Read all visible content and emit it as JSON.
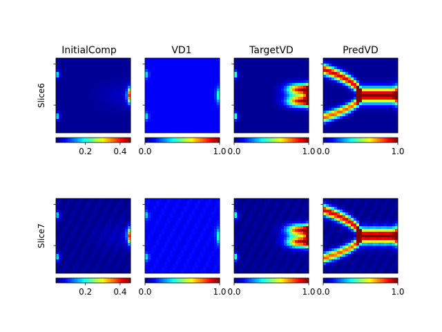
{
  "chart_data": {
    "type": "heatmap",
    "colormap": "jet",
    "columns": [
      "InitialComp",
      "VD1",
      "TargetVD",
      "PredVD"
    ],
    "rows": [
      "Slice6",
      "Slice7"
    ],
    "colorbars": [
      {
        "panel": "InitialComp",
        "range": [
          0.03,
          0.46
        ],
        "ticks": [
          0.2,
          0.4
        ],
        "tick_labels": [
          "0.2",
          "0.4"
        ]
      },
      {
        "panel": "VD1",
        "range": [
          0.0,
          1.0
        ],
        "ticks": [
          0.0,
          1.0
        ],
        "tick_labels": [
          "0.0",
          "1.0"
        ]
      },
      {
        "panel": "TargetVD",
        "range": [
          0.0,
          1.0
        ],
        "ticks": [
          0.0,
          1.0
        ],
        "tick_labels": [
          "0.0",
          "1.0"
        ]
      },
      {
        "panel": "PredVD",
        "range": [
          0.0,
          1.0
        ],
        "ticks": [
          0.0,
          1.0
        ],
        "tick_labels": [
          "0.0",
          "1.0"
        ]
      }
    ],
    "grid": false
  },
  "colors": {
    "background": "#ffffff",
    "axes_edge": "#000000"
  }
}
